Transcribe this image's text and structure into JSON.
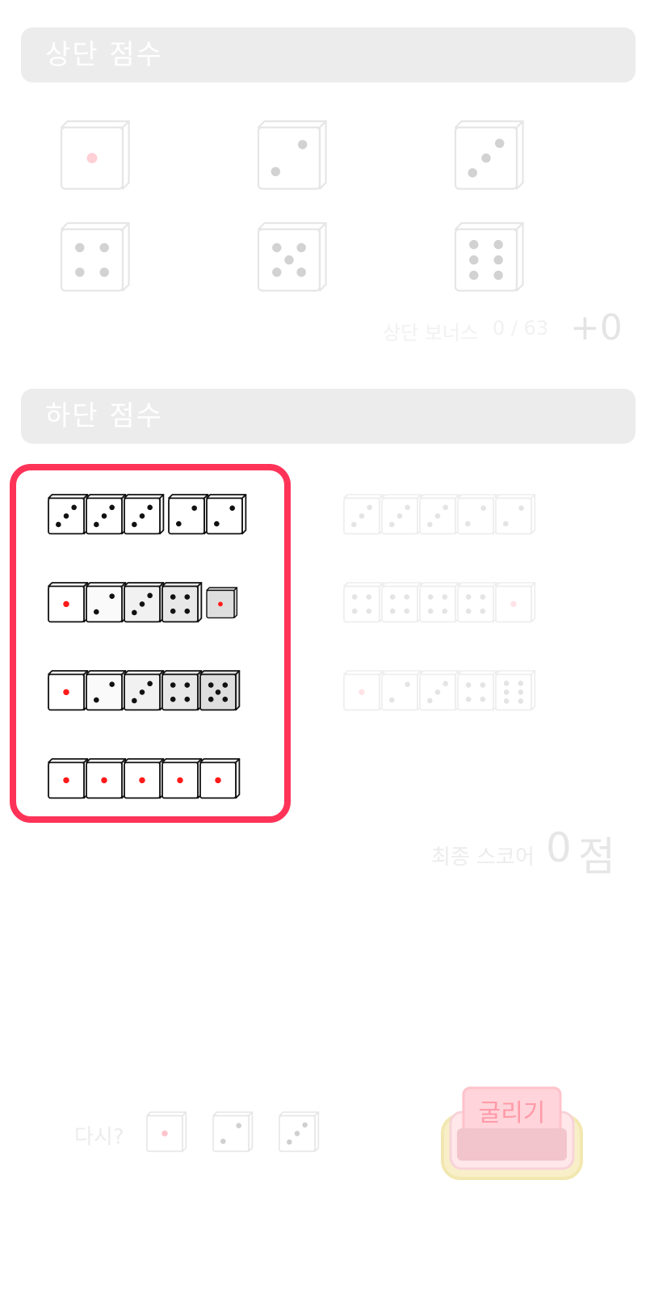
{
  "upper": {
    "title": "상단 점수",
    "categories": [
      {
        "name": "ones",
        "face": 1
      },
      {
        "name": "twos",
        "face": 2
      },
      {
        "name": "threes",
        "face": 3
      },
      {
        "name": "fours",
        "face": 4
      },
      {
        "name": "fives",
        "face": 5
      },
      {
        "name": "sixes",
        "face": 6
      }
    ],
    "bonus_label": "상단 보너스",
    "bonus_count": "0 / 63",
    "bonus_value": "+0"
  },
  "lower": {
    "title": "하단 점수",
    "combos": [
      {
        "name": "full-house",
        "faces": [
          3,
          3,
          3,
          2,
          2
        ],
        "shades": [
          0,
          0,
          0,
          0,
          0
        ],
        "gap_after": 3
      },
      {
        "name": "small-straight",
        "faces": [
          1,
          2,
          3,
          4,
          1
        ],
        "shades": [
          0,
          1,
          2,
          3,
          4
        ],
        "gap_after": 4
      },
      {
        "name": "large-straight",
        "faces": [
          1,
          2,
          3,
          4,
          5
        ],
        "shades": [
          0,
          1,
          2,
          3,
          4
        ],
        "gap_after": 0
      },
      {
        "name": "yacht",
        "faces": [
          1,
          1,
          1,
          1,
          1
        ],
        "shades": [
          0,
          0,
          0,
          0,
          0
        ],
        "gap_after": 0
      }
    ],
    "faint_combos": [
      {
        "name": "faint-full-house",
        "faces": [
          3,
          3,
          3,
          2,
          2
        ]
      },
      {
        "name": "faint-four-of-a-kind",
        "faces": [
          4,
          4,
          4,
          4,
          1
        ]
      },
      {
        "name": "faint-large-straight",
        "faces": [
          1,
          2,
          3,
          4,
          6
        ]
      }
    ]
  },
  "final": {
    "label": "최종 스코어",
    "value": "0",
    "unit": "점"
  },
  "reroll": {
    "label": "다시?",
    "faces": [
      1,
      2,
      3
    ]
  },
  "roll_button": {
    "label": "굴리기"
  },
  "colors": {
    "highlight": "#ff3358",
    "pip_red": "#ff1a1a",
    "pip_black": "#111111",
    "header_bg": "#ececec",
    "roll_red": "#e83a4e",
    "roll_yellow": "#f2d24a"
  }
}
